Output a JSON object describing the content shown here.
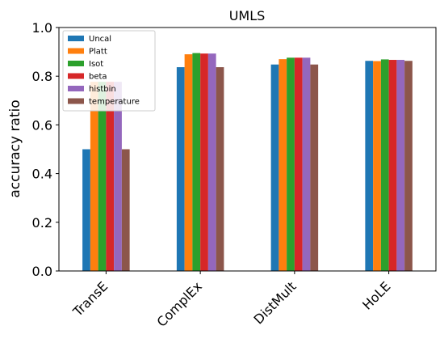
{
  "chart_data": {
    "type": "bar",
    "title": "UMLS",
    "xlabel": "",
    "ylabel": "accuracy ratio",
    "ylim": [
      0,
      1.0
    ],
    "yticks": [
      0.0,
      0.2,
      0.4,
      0.6,
      0.8,
      1.0
    ],
    "ytick_labels": [
      "0.0",
      "0.2",
      "0.4",
      "0.6",
      "0.8",
      "1.0"
    ],
    "categories": [
      "TransE",
      "ComplEx",
      "DistMult",
      "HoLE"
    ],
    "legend_position": "top-left",
    "grid": false,
    "series": [
      {
        "name": "Uncal",
        "color": "#1f77b4",
        "values": [
          0.5,
          0.837,
          0.848,
          0.863
        ]
      },
      {
        "name": "Platt",
        "color": "#ff7f0e",
        "values": [
          0.777,
          0.89,
          0.87,
          0.862
        ]
      },
      {
        "name": "Isot",
        "color": "#2ca02c",
        "values": [
          0.777,
          0.895,
          0.876,
          0.869
        ]
      },
      {
        "name": "beta",
        "color": "#d62728",
        "values": [
          0.777,
          0.893,
          0.876,
          0.867
        ]
      },
      {
        "name": "histbin",
        "color": "#9467bd",
        "values": [
          0.777,
          0.893,
          0.876,
          0.867
        ]
      },
      {
        "name": "temperature",
        "color": "#8c564b",
        "values": [
          0.5,
          0.837,
          0.848,
          0.863
        ]
      }
    ]
  }
}
